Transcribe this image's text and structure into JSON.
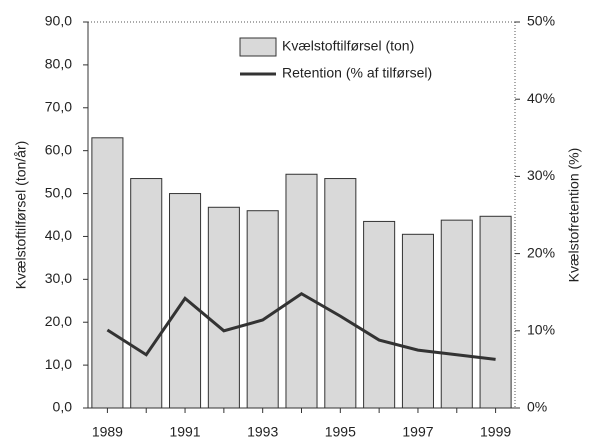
{
  "chart_data": {
    "type": "bar_line",
    "categories": [
      "1989",
      null,
      "1991",
      null,
      "1993",
      null,
      "1995",
      null,
      "1997",
      null,
      "1999"
    ],
    "series": [
      {
        "name": "Kvælstoftilførsel  (ton)",
        "type": "bar",
        "color": "#d9d9d9",
        "values": [
          63.0,
          53.5,
          50.0,
          46.8,
          46.0,
          54.5,
          53.5,
          43.5,
          40.5,
          43.8,
          44.7
        ]
      },
      {
        "name": "Retention (% af tilførsel)",
        "type": "line",
        "axis": "y2",
        "color": "#333333",
        "values": [
          10.1,
          6.9,
          14.2,
          10.0,
          11.4,
          14.8,
          11.9,
          8.8,
          7.5,
          6.9,
          6.3
        ]
      }
    ],
    "y_label": "Kvælstoftilførsel  (ton/år)",
    "y2_label": "Kvælstofretention  (%)",
    "ylim": [
      0,
      90
    ],
    "yticks": [
      {
        "value": 0,
        "label": "0,0"
      },
      {
        "value": 10,
        "label": "10,0"
      },
      {
        "value": 20,
        "label": "20,0"
      },
      {
        "value": 30,
        "label": "30,0"
      },
      {
        "value": 40,
        "label": "40,0"
      },
      {
        "value": 50,
        "label": "50,0"
      },
      {
        "value": 60,
        "label": "60,0"
      },
      {
        "value": 70,
        "label": "70,0"
      },
      {
        "value": 80,
        "label": "80,0"
      },
      {
        "value": 90,
        "label": "90,0"
      }
    ],
    "y2lim": [
      0,
      50
    ],
    "y2ticks": [
      {
        "value": 0,
        "label": "0%"
      },
      {
        "value": 10,
        "label": "10%"
      },
      {
        "value": 20,
        "label": "20%"
      },
      {
        "value": 30,
        "label": "30%"
      },
      {
        "value": 40,
        "label": "40%"
      },
      {
        "value": 50,
        "label": "50%"
      }
    ]
  }
}
